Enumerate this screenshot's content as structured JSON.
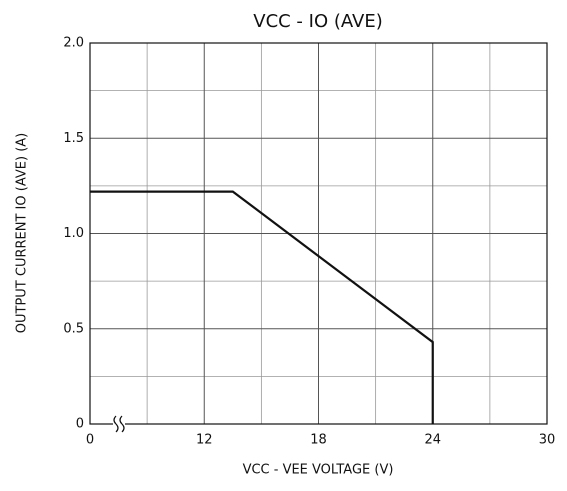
{
  "chart_data": {
    "type": "line",
    "title": "VCC - IO (AVE)",
    "x_label": "VCC - VEE VOLTAGE (V)",
    "y_label": "OUTPUT CURRENT IO (AVE) (A)",
    "x": [
      0,
      13.5,
      24,
      24
    ],
    "series": [
      {
        "name": "IO (AVE)",
        "color": "#111111",
        "values": [
          1.22,
          1.22,
          0.43,
          0
        ]
      }
    ],
    "xlim": [
      0,
      30
    ],
    "x_break": [
      0,
      6
    ],
    "xticks": [
      0,
      12,
      18,
      24,
      30
    ],
    "xgrid": [
      9,
      15,
      21,
      27
    ],
    "ylim": [
      0,
      2
    ],
    "yticks": [
      0,
      {
        "value": 0.5,
        "label": "0.5"
      },
      {
        "value": 1,
        "label": "1.0"
      },
      {
        "value": 1.5,
        "label": "1.5"
      },
      {
        "value": 2,
        "label": "2.0"
      }
    ],
    "ygrid": [
      0.25,
      0.75,
      1.25,
      1.75
    ],
    "grid": true
  }
}
